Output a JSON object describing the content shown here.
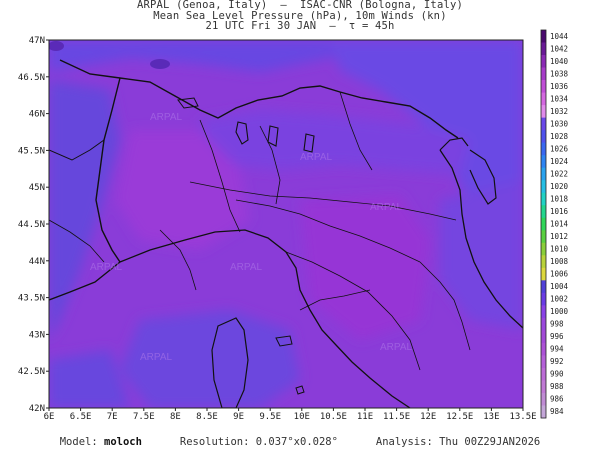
{
  "title": {
    "line1": "ARPAL (Genoa, Italy)  —  ISAC-CNR (Bologna, Italy)",
    "line2": "Mean Sea Level Pressure (hPa), 10m Winds (kn)",
    "line3": "21 UTC Fri 30 JAN  —  τ = 45h"
  },
  "axes": {
    "longitude_ticks": [
      "6E",
      "6.5E",
      "7E",
      "7.5E",
      "8E",
      "8.5E",
      "9E",
      "9.5E",
      "10E",
      "10.5E",
      "11E",
      "11.5E",
      "12E",
      "12.5E",
      "13E",
      "13.5E"
    ],
    "latitude_ticks": [
      "47N",
      "46.5N",
      "46N",
      "45.5N",
      "45N",
      "44.5N",
      "44N",
      "43.5N",
      "43N",
      "42.5N",
      "42N"
    ],
    "lon_range": [
      6,
      13.5
    ],
    "lat_range": [
      42,
      47
    ]
  },
  "colorbar": {
    "labels": [
      "1044",
      "1042",
      "1040",
      "1038",
      "1036",
      "1034",
      "1032",
      "1030",
      "1028",
      "1026",
      "1024",
      "1022",
      "1020",
      "1018",
      "1016",
      "1014",
      "1012",
      "1010",
      "1008",
      "1006",
      "1004",
      "1002",
      "1000",
      "998",
      "996",
      "994",
      "992",
      "990",
      "988",
      "986",
      "984"
    ],
    "colors": [
      "#4a0a6e",
      "#6a1a96",
      "#8a2ab4",
      "#a63cc8",
      "#c04ed6",
      "#d468e0",
      "#e08aea",
      "#6a48e8",
      "#4f52ec",
      "#3a68f0",
      "#2e84f2",
      "#2aa2ee",
      "#26bfe4",
      "#22d2c4",
      "#24d68e",
      "#30d65a",
      "#5ad040",
      "#8ace3a",
      "#b8d23a",
      "#dcd83e",
      "#5040d8",
      "#6a3ce4",
      "#8a42e6",
      "#9a48dc",
      "#a24ad6",
      "#ac52d6",
      "#b460d8",
      "#bc6cd6",
      "#c07ad4",
      "#c08cd4",
      "#c4a6d8"
    ]
  },
  "footer": {
    "model_label": "Model:",
    "model_value": "moloch",
    "resolution_label": "Resolution:",
    "resolution_value": "0.037°x0.028°",
    "analysis_label": "Analysis:",
    "analysis_value": "Thu 00Z29JAN2026"
  },
  "watermark": "ARPAL"
}
